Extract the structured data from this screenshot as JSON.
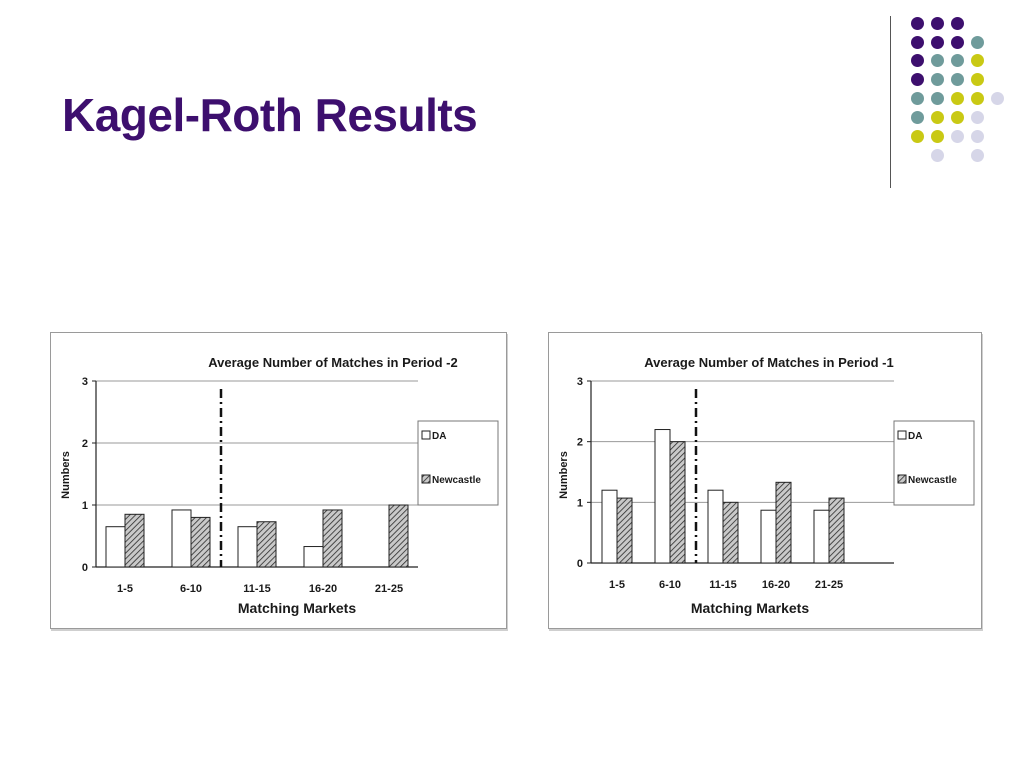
{
  "slide": {
    "title": "Kagel-Roth Results"
  },
  "decoration": {
    "dot_colors": [
      "#3d0f6e",
      "#6f9b9b",
      "#c9c914",
      "#d6d6e8"
    ]
  },
  "chart_data": [
    {
      "type": "bar",
      "title": "Average Number of Matches in Period -2",
      "xlabel": "Matching Markets",
      "ylabel": "Numbers",
      "categories": [
        "1-5",
        "6-10",
        "11-15",
        "16-20",
        "21-25"
      ],
      "series": [
        {
          "name": "DA",
          "values": [
            0.65,
            0.92,
            0.65,
            0.33,
            null
          ],
          "fill": "white"
        },
        {
          "name": "Newcastle",
          "values": [
            0.85,
            0.8,
            0.73,
            0.92,
            1.0
          ],
          "fill": "hatched"
        }
      ],
      "yticks": [
        "0",
        "1",
        "2",
        "3"
      ],
      "ylim": [
        0,
        3
      ],
      "grid": true,
      "legend": "right",
      "divider_after_category": "6-10"
    },
    {
      "type": "bar",
      "title": "Average Number of Matches in Period -1",
      "xlabel": "Matching Markets",
      "ylabel": "Numbers",
      "categories": [
        "1-5",
        "6-10",
        "11-15",
        "16-20",
        "21-25"
      ],
      "series": [
        {
          "name": "DA",
          "values": [
            1.2,
            2.2,
            1.2,
            0.87,
            0.87
          ],
          "fill": "white"
        },
        {
          "name": "Newcastle",
          "values": [
            1.07,
            2.0,
            1.0,
            1.33,
            1.07
          ],
          "fill": "hatched"
        }
      ],
      "yticks": [
        "0",
        "1",
        "2",
        "3"
      ],
      "ylim": [
        0,
        3
      ],
      "grid": true,
      "legend": "right",
      "divider_after_category": "6-10"
    }
  ]
}
